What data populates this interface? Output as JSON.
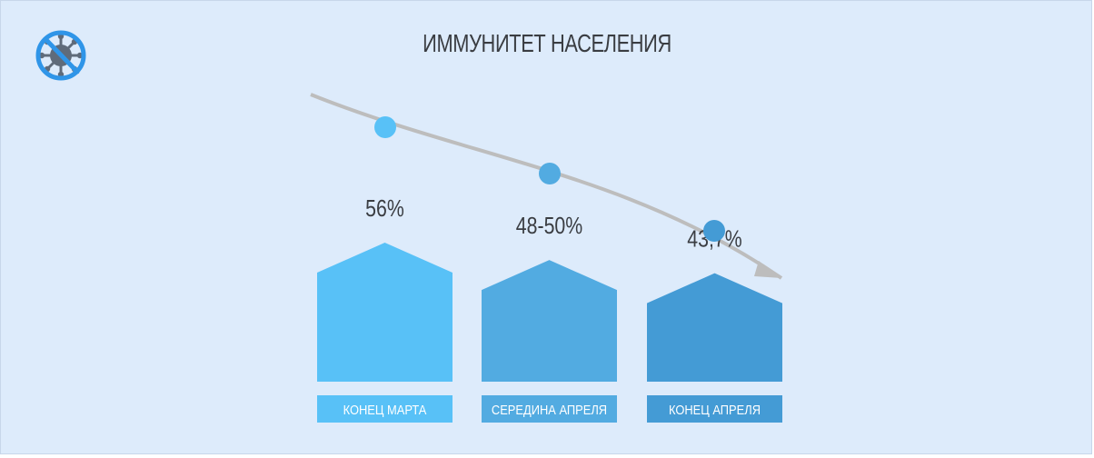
{
  "page": {
    "title": "ИММУНИТЕТ НАСЕЛЕНИЯ",
    "logo_icon": "no-virus-icon"
  },
  "colors": {
    "background": "#ddebfb",
    "title": "#3a3d42",
    "trend_line": "#bdbdbd",
    "label_text": "#ffffff",
    "value_text": "#3a3d42",
    "logo_ring": "#2f95e8",
    "logo_virus": "#5f6b7a"
  },
  "chart_data": {
    "type": "bar",
    "title": "ИММУНИТЕТ НАСЕЛЕНИЯ",
    "categories": [
      "КОНЕЦ МАРТА",
      "СЕРЕДИНА АПРЕЛЯ",
      "КОНЕЦ АПРЕЛЯ"
    ],
    "values": [
      56,
      49,
      43.7
    ],
    "value_labels": [
      "56%",
      "48-50%",
      "43,7%"
    ],
    "bar_colors": [
      "#58c1f7",
      "#52abe1",
      "#449bd5"
    ],
    "trend": "decreasing",
    "ylim": [
      0,
      60
    ],
    "grid": false,
    "legend": "none"
  }
}
